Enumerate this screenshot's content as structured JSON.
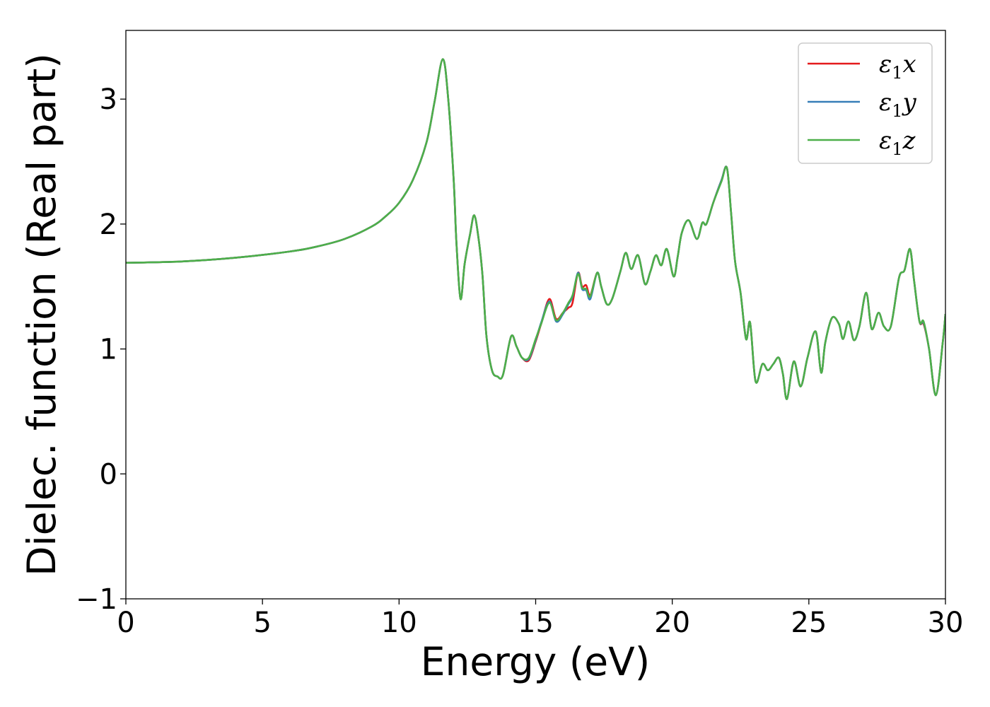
{
  "chart_data": {
    "type": "line",
    "title": "",
    "xlabel": "Energy (eV)",
    "ylabel": "Dielec. function (Real part)",
    "xlim": [
      0,
      30
    ],
    "ylim": [
      -1,
      3.55
    ],
    "xticks": [
      0,
      5,
      10,
      15,
      20,
      25,
      30
    ],
    "yticks": [
      -1,
      0,
      1,
      2,
      3
    ],
    "xtick_labels": [
      "0",
      "5",
      "10",
      "15",
      "20",
      "25",
      "30"
    ],
    "ytick_labels": [
      "−1",
      "0",
      "1",
      "2",
      "3"
    ],
    "grid": false,
    "legend_position": "top-right",
    "series": [
      {
        "name": "ε1x",
        "legend_base": "ε",
        "legend_sub": "1",
        "legend_var": "x",
        "color": "#e41a1c",
        "points": [
          [
            0,
            1.69
          ],
          [
            2,
            1.7
          ],
          [
            4,
            1.73
          ],
          [
            6,
            1.78
          ],
          [
            7,
            1.82
          ],
          [
            8,
            1.88
          ],
          [
            9,
            1.98
          ],
          [
            9.5,
            2.06
          ],
          [
            10,
            2.17
          ],
          [
            10.5,
            2.35
          ],
          [
            11,
            2.65
          ],
          [
            11.3,
            2.98
          ],
          [
            11.6,
            3.32
          ],
          [
            11.8,
            3.0
          ],
          [
            12.0,
            2.35
          ],
          [
            12.1,
            1.85
          ],
          [
            12.25,
            1.4
          ],
          [
            12.4,
            1.68
          ],
          [
            12.6,
            1.92
          ],
          [
            12.75,
            2.07
          ],
          [
            12.9,
            1.9
          ],
          [
            13.05,
            1.6
          ],
          [
            13.2,
            1.1
          ],
          [
            13.4,
            0.83
          ],
          [
            13.6,
            0.78
          ],
          [
            13.8,
            0.79
          ],
          [
            14.1,
            1.1
          ],
          [
            14.3,
            1.02
          ],
          [
            14.5,
            0.93
          ],
          [
            14.75,
            0.91
          ],
          [
            15.0,
            1.06
          ],
          [
            15.2,
            1.2
          ],
          [
            15.5,
            1.4
          ],
          [
            15.75,
            1.24
          ],
          [
            16.0,
            1.29
          ],
          [
            16.2,
            1.33
          ],
          [
            16.35,
            1.37
          ],
          [
            16.55,
            1.61
          ],
          [
            16.7,
            1.5
          ],
          [
            16.85,
            1.51
          ],
          [
            17.0,
            1.43
          ],
          [
            17.25,
            1.61
          ],
          [
            17.4,
            1.5
          ],
          [
            17.6,
            1.36
          ],
          [
            17.8,
            1.4
          ],
          [
            18.1,
            1.62
          ],
          [
            18.3,
            1.77
          ],
          [
            18.5,
            1.64
          ],
          [
            18.75,
            1.75
          ],
          [
            19.0,
            1.52
          ],
          [
            19.2,
            1.62
          ],
          [
            19.4,
            1.75
          ],
          [
            19.6,
            1.67
          ],
          [
            19.8,
            1.8
          ],
          [
            20.05,
            1.58
          ],
          [
            20.2,
            1.74
          ],
          [
            20.35,
            1.93
          ],
          [
            20.6,
            2.03
          ],
          [
            20.9,
            1.88
          ],
          [
            21.1,
            2.01
          ],
          [
            21.25,
            2.0
          ],
          [
            21.5,
            2.17
          ],
          [
            21.8,
            2.35
          ],
          [
            22.0,
            2.45
          ],
          [
            22.15,
            2.1
          ],
          [
            22.3,
            1.7
          ],
          [
            22.5,
            1.45
          ],
          [
            22.7,
            1.08
          ],
          [
            22.85,
            1.21
          ],
          [
            23.05,
            0.74
          ],
          [
            23.3,
            0.88
          ],
          [
            23.5,
            0.83
          ],
          [
            23.7,
            0.88
          ],
          [
            23.9,
            0.93
          ],
          [
            24.05,
            0.8
          ],
          [
            24.2,
            0.6
          ],
          [
            24.45,
            0.9
          ],
          [
            24.7,
            0.7
          ],
          [
            24.95,
            0.93
          ],
          [
            25.25,
            1.14
          ],
          [
            25.45,
            0.81
          ],
          [
            25.6,
            1.05
          ],
          [
            25.85,
            1.25
          ],
          [
            26.1,
            1.2
          ],
          [
            26.25,
            1.08
          ],
          [
            26.45,
            1.22
          ],
          [
            26.65,
            1.07
          ],
          [
            26.85,
            1.18
          ],
          [
            27.1,
            1.45
          ],
          [
            27.3,
            1.16
          ],
          [
            27.55,
            1.29
          ],
          [
            27.75,
            1.18
          ],
          [
            28.0,
            1.18
          ],
          [
            28.3,
            1.57
          ],
          [
            28.5,
            1.63
          ],
          [
            28.7,
            1.8
          ],
          [
            28.85,
            1.55
          ],
          [
            29.05,
            1.22
          ],
          [
            29.2,
            1.2
          ],
          [
            29.4,
            1.0
          ],
          [
            29.65,
            0.63
          ],
          [
            29.9,
            1.05
          ],
          [
            30.0,
            1.28
          ]
        ]
      },
      {
        "name": "ε1y",
        "legend_base": "ε",
        "legend_sub": "1",
        "legend_var": "y",
        "color": "#377eb8",
        "points": [
          [
            0,
            1.69
          ],
          [
            2,
            1.7
          ],
          [
            4,
            1.73
          ],
          [
            6,
            1.78
          ],
          [
            7,
            1.82
          ],
          [
            8,
            1.88
          ],
          [
            9,
            1.98
          ],
          [
            9.5,
            2.06
          ],
          [
            10,
            2.17
          ],
          [
            10.5,
            2.35
          ],
          [
            11,
            2.65
          ],
          [
            11.3,
            2.98
          ],
          [
            11.6,
            3.32
          ],
          [
            11.8,
            3.0
          ],
          [
            12.0,
            2.35
          ],
          [
            12.1,
            1.85
          ],
          [
            12.25,
            1.4
          ],
          [
            12.4,
            1.68
          ],
          [
            12.6,
            1.92
          ],
          [
            12.75,
            2.07
          ],
          [
            12.9,
            1.9
          ],
          [
            13.05,
            1.6
          ],
          [
            13.2,
            1.1
          ],
          [
            13.4,
            0.83
          ],
          [
            13.6,
            0.78
          ],
          [
            13.8,
            0.79
          ],
          [
            14.1,
            1.1
          ],
          [
            14.3,
            1.02
          ],
          [
            14.5,
            0.93
          ],
          [
            14.75,
            0.92
          ],
          [
            15.0,
            1.07
          ],
          [
            15.2,
            1.21
          ],
          [
            15.5,
            1.38
          ],
          [
            15.75,
            1.22
          ],
          [
            16.0,
            1.28
          ],
          [
            16.2,
            1.36
          ],
          [
            16.35,
            1.42
          ],
          [
            16.55,
            1.61
          ],
          [
            16.7,
            1.48
          ],
          [
            16.85,
            1.47
          ],
          [
            17.0,
            1.4
          ],
          [
            17.25,
            1.61
          ],
          [
            17.4,
            1.5
          ],
          [
            17.6,
            1.36
          ],
          [
            17.8,
            1.4
          ],
          [
            18.1,
            1.62
          ],
          [
            18.3,
            1.77
          ],
          [
            18.5,
            1.64
          ],
          [
            18.75,
            1.75
          ],
          [
            19.0,
            1.52
          ],
          [
            19.2,
            1.62
          ],
          [
            19.4,
            1.75
          ],
          [
            19.6,
            1.67
          ],
          [
            19.8,
            1.8
          ],
          [
            20.05,
            1.58
          ],
          [
            20.2,
            1.74
          ],
          [
            20.35,
            1.93
          ],
          [
            20.6,
            2.03
          ],
          [
            20.9,
            1.88
          ],
          [
            21.1,
            2.01
          ],
          [
            21.25,
            2.0
          ],
          [
            21.5,
            2.17
          ],
          [
            21.8,
            2.35
          ],
          [
            22.0,
            2.45
          ],
          [
            22.15,
            2.1
          ],
          [
            22.3,
            1.7
          ],
          [
            22.5,
            1.45
          ],
          [
            22.7,
            1.08
          ],
          [
            22.85,
            1.21
          ],
          [
            23.05,
            0.74
          ],
          [
            23.3,
            0.88
          ],
          [
            23.5,
            0.83
          ],
          [
            23.7,
            0.88
          ],
          [
            23.9,
            0.93
          ],
          [
            24.05,
            0.8
          ],
          [
            24.2,
            0.6
          ],
          [
            24.45,
            0.9
          ],
          [
            24.7,
            0.7
          ],
          [
            24.95,
            0.93
          ],
          [
            25.25,
            1.14
          ],
          [
            25.45,
            0.81
          ],
          [
            25.6,
            1.05
          ],
          [
            25.85,
            1.25
          ],
          [
            26.1,
            1.2
          ],
          [
            26.25,
            1.08
          ],
          [
            26.45,
            1.22
          ],
          [
            26.65,
            1.07
          ],
          [
            26.85,
            1.18
          ],
          [
            27.1,
            1.45
          ],
          [
            27.3,
            1.16
          ],
          [
            27.55,
            1.29
          ],
          [
            27.75,
            1.18
          ],
          [
            28.0,
            1.18
          ],
          [
            28.3,
            1.57
          ],
          [
            28.5,
            1.63
          ],
          [
            28.7,
            1.8
          ],
          [
            28.85,
            1.55
          ],
          [
            29.05,
            1.22
          ],
          [
            29.2,
            1.21
          ],
          [
            29.4,
            1.0
          ],
          [
            29.65,
            0.63
          ],
          [
            29.9,
            1.05
          ],
          [
            30.0,
            1.28
          ]
        ]
      },
      {
        "name": "ε1z",
        "legend_base": "ε",
        "legend_sub": "1",
        "legend_var": "z",
        "color": "#4daf4a",
        "points": [
          [
            0,
            1.69
          ],
          [
            2,
            1.7
          ],
          [
            4,
            1.73
          ],
          [
            6,
            1.78
          ],
          [
            7,
            1.82
          ],
          [
            8,
            1.88
          ],
          [
            9,
            1.98
          ],
          [
            9.5,
            2.06
          ],
          [
            10,
            2.17
          ],
          [
            10.5,
            2.35
          ],
          [
            11,
            2.65
          ],
          [
            11.3,
            2.98
          ],
          [
            11.6,
            3.32
          ],
          [
            11.8,
            3.0
          ],
          [
            12.0,
            2.35
          ],
          [
            12.1,
            1.85
          ],
          [
            12.25,
            1.4
          ],
          [
            12.4,
            1.68
          ],
          [
            12.6,
            1.92
          ],
          [
            12.75,
            2.07
          ],
          [
            12.9,
            1.9
          ],
          [
            13.05,
            1.6
          ],
          [
            13.2,
            1.1
          ],
          [
            13.4,
            0.83
          ],
          [
            13.6,
            0.78
          ],
          [
            13.8,
            0.79
          ],
          [
            14.1,
            1.1
          ],
          [
            14.3,
            1.02
          ],
          [
            14.5,
            0.93
          ],
          [
            14.75,
            0.93
          ],
          [
            15.0,
            1.08
          ],
          [
            15.2,
            1.2
          ],
          [
            15.5,
            1.37
          ],
          [
            15.75,
            1.23
          ],
          [
            16.0,
            1.29
          ],
          [
            16.2,
            1.37
          ],
          [
            16.35,
            1.43
          ],
          [
            16.55,
            1.6
          ],
          [
            16.7,
            1.49
          ],
          [
            16.85,
            1.48
          ],
          [
            17.0,
            1.42
          ],
          [
            17.25,
            1.61
          ],
          [
            17.4,
            1.5
          ],
          [
            17.6,
            1.36
          ],
          [
            17.8,
            1.4
          ],
          [
            18.1,
            1.62
          ],
          [
            18.3,
            1.77
          ],
          [
            18.5,
            1.64
          ],
          [
            18.75,
            1.75
          ],
          [
            19.0,
            1.52
          ],
          [
            19.2,
            1.62
          ],
          [
            19.4,
            1.75
          ],
          [
            19.6,
            1.67
          ],
          [
            19.8,
            1.8
          ],
          [
            20.05,
            1.58
          ],
          [
            20.2,
            1.74
          ],
          [
            20.35,
            1.93
          ],
          [
            20.6,
            2.03
          ],
          [
            20.9,
            1.88
          ],
          [
            21.1,
            2.01
          ],
          [
            21.25,
            2.0
          ],
          [
            21.5,
            2.17
          ],
          [
            21.8,
            2.34
          ],
          [
            22.0,
            2.45
          ],
          [
            22.15,
            2.1
          ],
          [
            22.3,
            1.7
          ],
          [
            22.5,
            1.45
          ],
          [
            22.7,
            1.08
          ],
          [
            22.85,
            1.21
          ],
          [
            23.05,
            0.74
          ],
          [
            23.3,
            0.88
          ],
          [
            23.5,
            0.83
          ],
          [
            23.7,
            0.88
          ],
          [
            23.9,
            0.93
          ],
          [
            24.05,
            0.8
          ],
          [
            24.2,
            0.6
          ],
          [
            24.45,
            0.9
          ],
          [
            24.7,
            0.7
          ],
          [
            24.95,
            0.93
          ],
          [
            25.25,
            1.14
          ],
          [
            25.45,
            0.81
          ],
          [
            25.6,
            1.05
          ],
          [
            25.85,
            1.25
          ],
          [
            26.1,
            1.2
          ],
          [
            26.25,
            1.08
          ],
          [
            26.45,
            1.22
          ],
          [
            26.65,
            1.07
          ],
          [
            26.85,
            1.18
          ],
          [
            27.1,
            1.45
          ],
          [
            27.3,
            1.16
          ],
          [
            27.55,
            1.29
          ],
          [
            27.75,
            1.18
          ],
          [
            28.0,
            1.18
          ],
          [
            28.3,
            1.57
          ],
          [
            28.5,
            1.63
          ],
          [
            28.7,
            1.8
          ],
          [
            28.85,
            1.55
          ],
          [
            29.05,
            1.22
          ],
          [
            29.2,
            1.22
          ],
          [
            29.4,
            1.0
          ],
          [
            29.65,
            0.63
          ],
          [
            29.9,
            1.05
          ],
          [
            30.0,
            1.28
          ]
        ]
      }
    ]
  }
}
